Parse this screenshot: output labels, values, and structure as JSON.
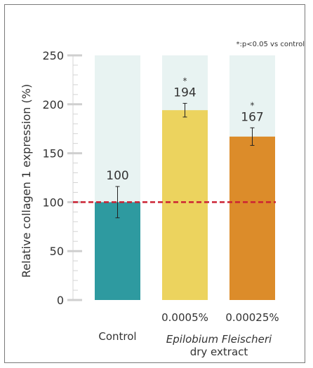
{
  "chart_data": {
    "type": "bar",
    "note": "*:p<0.05 vs control",
    "ylabel": "Relative collagen 1 expression (%)",
    "ylim": [
      0,
      250
    ],
    "yticks": [
      0,
      50,
      100,
      150,
      200,
      250
    ],
    "reference_line": 100,
    "categories": [
      "Control",
      "0.0005%",
      "0.00025%"
    ],
    "values": [
      100,
      194,
      167
    ],
    "errors": [
      16,
      7,
      9
    ],
    "significant": [
      "",
      "*",
      "*"
    ],
    "colors": [
      "#2e9aa0",
      "#ecd35e",
      "#dc8c2a"
    ],
    "background_color": "#e8f3f2",
    "reference_color": "#cc2233",
    "group_label": {
      "line1": "Epilobium Fleischeri",
      "line2": "dry extract"
    }
  }
}
